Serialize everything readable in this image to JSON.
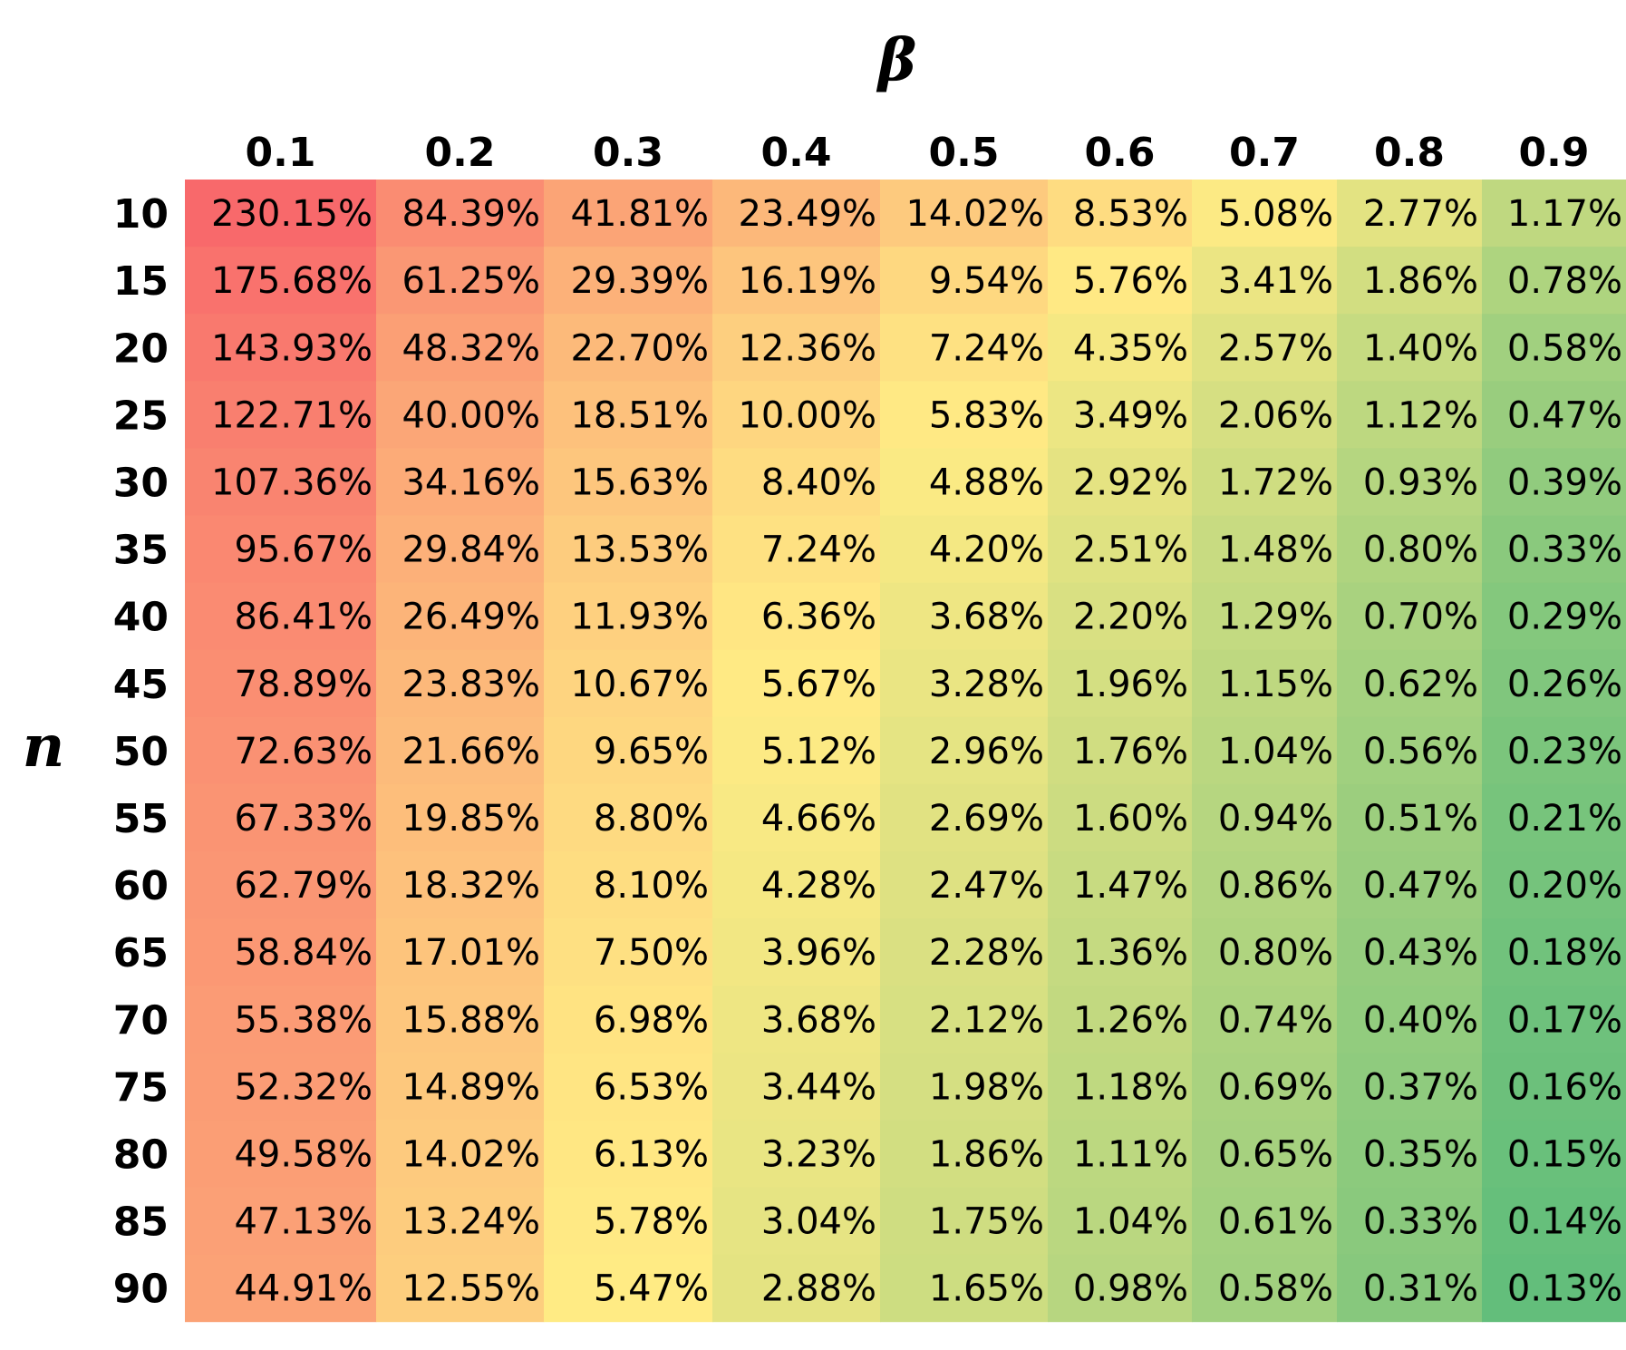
{
  "chart_data": {
    "type": "heatmap",
    "title": "",
    "xlabel": "β",
    "ylabel": "n",
    "x": [
      "0.1",
      "0.2",
      "0.3",
      "0.4",
      "0.5",
      "0.6",
      "0.7",
      "0.8",
      "0.9"
    ],
    "y": [
      "10",
      "15",
      "20",
      "25",
      "30",
      "35",
      "40",
      "45",
      "50",
      "55",
      "60",
      "65",
      "70",
      "75",
      "80",
      "85",
      "90"
    ],
    "cells": [
      [
        "230.15%",
        "84.39%",
        "41.81%",
        "23.49%",
        "14.02%",
        "8.53%",
        "5.08%",
        "2.77%",
        "1.17%"
      ],
      [
        "175.68%",
        "61.25%",
        "29.39%",
        "16.19%",
        "9.54%",
        "5.76%",
        "3.41%",
        "1.86%",
        "0.78%"
      ],
      [
        "143.93%",
        "48.32%",
        "22.70%",
        "12.36%",
        "7.24%",
        "4.35%",
        "2.57%",
        "1.40%",
        "0.58%"
      ],
      [
        "122.71%",
        "40.00%",
        "18.51%",
        "10.00%",
        "5.83%",
        "3.49%",
        "2.06%",
        "1.12%",
        "0.47%"
      ],
      [
        "107.36%",
        "34.16%",
        "15.63%",
        "8.40%",
        "4.88%",
        "2.92%",
        "1.72%",
        "0.93%",
        "0.39%"
      ],
      [
        "95.67%",
        "29.84%",
        "13.53%",
        "7.24%",
        "4.20%",
        "2.51%",
        "1.48%",
        "0.80%",
        "0.33%"
      ],
      [
        "86.41%",
        "26.49%",
        "11.93%",
        "6.36%",
        "3.68%",
        "2.20%",
        "1.29%",
        "0.70%",
        "0.29%"
      ],
      [
        "78.89%",
        "23.83%",
        "10.67%",
        "5.67%",
        "3.28%",
        "1.96%",
        "1.15%",
        "0.62%",
        "0.26%"
      ],
      [
        "72.63%",
        "21.66%",
        "9.65%",
        "5.12%",
        "2.96%",
        "1.76%",
        "1.04%",
        "0.56%",
        "0.23%"
      ],
      [
        "67.33%",
        "19.85%",
        "8.80%",
        "4.66%",
        "2.69%",
        "1.60%",
        "0.94%",
        "0.51%",
        "0.21%"
      ],
      [
        "62.79%",
        "18.32%",
        "8.10%",
        "4.28%",
        "2.47%",
        "1.47%",
        "0.86%",
        "0.47%",
        "0.20%"
      ],
      [
        "58.84%",
        "17.01%",
        "7.50%",
        "3.96%",
        "2.28%",
        "1.36%",
        "0.80%",
        "0.43%",
        "0.18%"
      ],
      [
        "55.38%",
        "15.88%",
        "6.98%",
        "3.68%",
        "2.12%",
        "1.26%",
        "0.74%",
        "0.40%",
        "0.17%"
      ],
      [
        "52.32%",
        "14.89%",
        "6.53%",
        "3.44%",
        "1.98%",
        "1.18%",
        "0.69%",
        "0.37%",
        "0.16%"
      ],
      [
        "49.58%",
        "14.02%",
        "6.13%",
        "3.23%",
        "1.86%",
        "1.11%",
        "0.65%",
        "0.35%",
        "0.15%"
      ],
      [
        "47.13%",
        "13.24%",
        "5.78%",
        "3.04%",
        "1.75%",
        "1.04%",
        "0.61%",
        "0.33%",
        "0.14%"
      ],
      [
        "44.91%",
        "12.55%",
        "5.47%",
        "2.88%",
        "1.65%",
        "0.98%",
        "0.58%",
        "0.31%",
        "0.13%"
      ]
    ],
    "colormap": {
      "type": "red-yellow-green",
      "high": "#f8696b",
      "mid": "#ffeb84",
      "low": "#63be7b"
    },
    "grid": false,
    "legend": "none"
  }
}
